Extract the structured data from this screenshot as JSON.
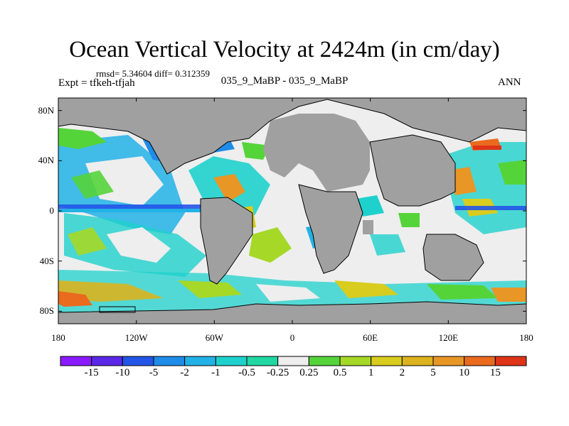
{
  "title": "Ocean Vertical Velocity at 2424m (in cm/day)",
  "stats": "rmsd= 5.34604  diff= 0.312359",
  "expt": "Expt = tfkeh-tfjah",
  "case_line": "035_9_MaBP - 035_9_MaBP",
  "season": "ANN",
  "land_color": "#a0a0a0",
  "lat_labels": [
    {
      "label": "80N",
      "lat": 80
    },
    {
      "label": "40N",
      "lat": 40
    },
    {
      "label": "0",
      "lat": 0
    },
    {
      "label": "40S",
      "lat": -40
    },
    {
      "label": "80S",
      "lat": -80
    }
  ],
  "lon_labels": [
    {
      "label": "180",
      "lon": -180
    },
    {
      "label": "120W",
      "lon": -120
    },
    {
      "label": "60W",
      "lon": -60
    },
    {
      "label": "0",
      "lon": 0
    },
    {
      "label": "60E",
      "lon": 60
    },
    {
      "label": "120E",
      "lon": 120
    },
    {
      "label": "180",
      "lon": 180
    }
  ],
  "colorbar": {
    "colors": [
      "#8a1aff",
      "#5a28e6",
      "#2455e8",
      "#1e8ce8",
      "#22b2e6",
      "#1fd1cc",
      "#21d8a2",
      "#eeeeee",
      "#55d43a",
      "#a6d828",
      "#d8cc1e",
      "#dcb21e",
      "#e89626",
      "#ea6a1e",
      "#e03418"
    ],
    "labels": [
      "-15",
      "-10",
      "-5",
      "-2",
      "-1",
      "-0.5",
      "-0.25",
      "0.25",
      "0.5",
      "1",
      "2",
      "5",
      "10",
      "15"
    ]
  }
}
